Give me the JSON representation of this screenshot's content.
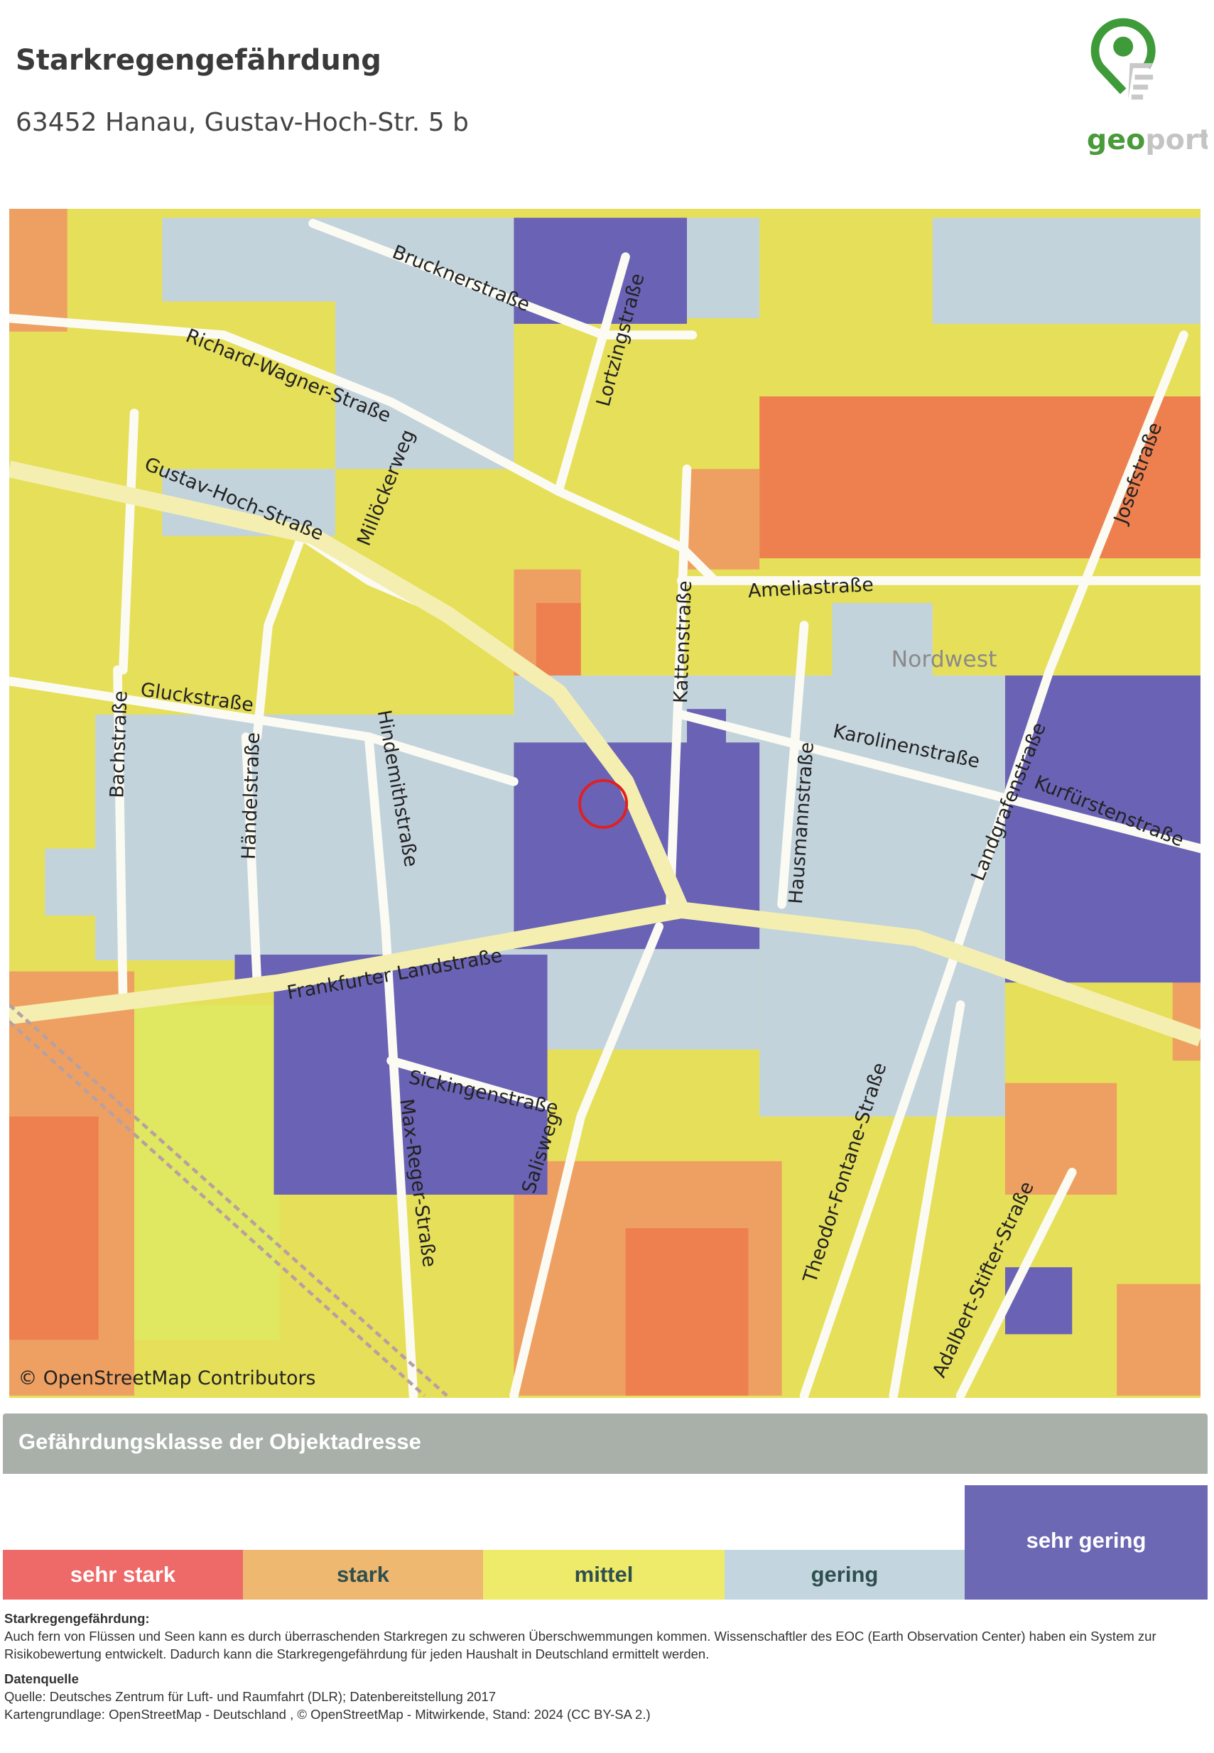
{
  "header": {
    "title": "Starkregengefährdung",
    "address": "63452 Hanau, Gustav-Hoch-Str. 5 b",
    "logo_text": "geoport"
  },
  "map": {
    "attribution": "© OpenStreetMap Contributors",
    "district": "Nordwest",
    "marker_icon": "red-circle-location-marker",
    "streets": {
      "brucknerstrasse": "Brucknerstraße",
      "richard_wagner": "Richard-Wagner-Straße",
      "lortzingstrasse": "Lortzingstraße",
      "gustav_hoch": "Gustav-Hoch-Straße",
      "millockerweg": "Millöckerweg",
      "ameliastrasse": "Ameliastraße",
      "josefstrasse": "Josefstraße",
      "kattenstrasse": "Kattenstraße",
      "gluckstrasse": "Gluckstraße",
      "hindemithstrasse": "Hindemithstraße",
      "karolinenstrasse": "Karolinenstraße",
      "landgrafenstrasse": "Landgrafenstraße",
      "kurfuerstenstrasse": "Kurfürstenstraße",
      "bachstrasse": "Bachstraße",
      "haendelstrasse": "Händelstraße",
      "hausmannstrasse": "Hausmannstraße",
      "frankfurter_landstrasse": "Frankfurter Landstraße",
      "sickingenstrasse": "Sickingenstraße",
      "max_reger": "Max-Reger-Straße",
      "salisweg": "Salisweg",
      "theodor_fontane": "Theodor-Fontane-Straße",
      "adalbert_stifter": "Adalbert-Stifter-Straße"
    },
    "colors": {
      "sehr_stark": "#ee8050",
      "stark": "#eea062",
      "mittel": "#e6df5a",
      "gering": "#c3d3dc",
      "sehr_gering": "#6a62b5"
    }
  },
  "legend": {
    "header": "Gefährdungsklasse der Objektadresse",
    "active_class": "sehr gering",
    "classes": [
      {
        "label": "sehr stark",
        "color": "#ee6a68",
        "text_color": "#ffffff"
      },
      {
        "label": "stark",
        "color": "#eeb870",
        "text_color": "#2f4f4f"
      },
      {
        "label": "mittel",
        "color": "#eeea6a",
        "text_color": "#2f4f4f"
      },
      {
        "label": "gering",
        "color": "#c3d6e0",
        "text_color": "#2f4f4f"
      },
      {
        "label": "sehr gering",
        "color": "#6c68b4",
        "text_color": "#ffffff"
      }
    ]
  },
  "description": {
    "heading": "Starkregengefährdung:",
    "text": "Auch fern von Flüssen und Seen kann es durch überraschenden Starkregen zu schweren Überschwemmungen kommen. Wissenschaftler des EOC (Earth Observation Center) haben ein System zur Risikobewertung entwickelt. Dadurch kann die Starkregengefährdung für jeden Haushalt in Deutschland ermittelt werden.",
    "source_heading": "Datenquelle",
    "source_line1": "Quelle: Deutsches Zentrum für Luft- und Raumfahrt (DLR); Datenbereitstellung 2017",
    "source_line2": "Kartengrundlage: OpenStreetMap - Deutschland , © OpenStreetMap - Mitwirkende, Stand: 2024 (CC BY-SA 2.)"
  }
}
